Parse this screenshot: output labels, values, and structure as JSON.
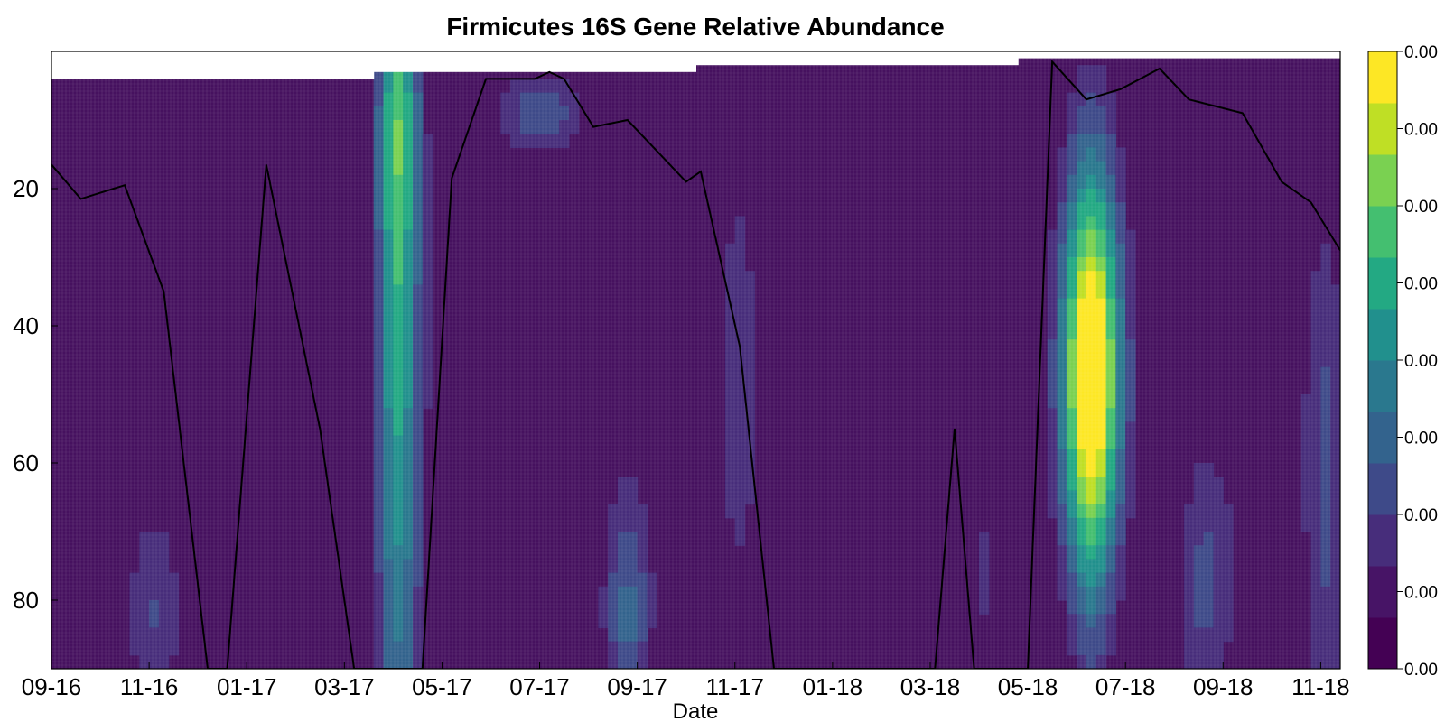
{
  "chart_data": {
    "type": "heatmap",
    "title": "Firmicutes 16S Gene Relative Abundance",
    "xlabel": "Date",
    "ylabel": "",
    "x_ticks": [
      "09-16",
      "11-16",
      "01-17",
      "03-17",
      "05-17",
      "07-17",
      "09-17",
      "11-17",
      "01-18",
      "03-18",
      "05-18",
      "07-18",
      "09-18",
      "11-18"
    ],
    "x_tick_months": [
      0,
      2,
      4,
      6,
      8,
      10,
      12,
      14,
      16,
      18,
      20,
      22,
      24,
      26
    ],
    "xlim_months": [
      0,
      26.4
    ],
    "y_ticks": [
      20,
      40,
      60,
      80
    ],
    "ylim": [
      0,
      90
    ],
    "y_inverted": true,
    "colorbar": {
      "labels": [
        "0.00",
        "0.00",
        "0.00",
        "0.00",
        "0.00",
        "0.00",
        "0.00",
        "0.00",
        "0.00"
      ],
      "palette": [
        "#440154",
        "#471466",
        "#472d7b",
        "#3e4a89",
        "#33638d",
        "#2a788e",
        "#21908d",
        "#23a983",
        "#44bf70",
        "#7ad151",
        "#bfdf25",
        "#fde725"
      ]
    },
    "colors": {
      "background": "#46115f",
      "line": "#000000"
    },
    "blobs": [
      {
        "x": 7.1,
        "y": 35,
        "sx": 0.32,
        "sy": 55,
        "v": 0.62
      },
      {
        "x": 7.1,
        "y": 10,
        "sx": 0.25,
        "sy": 14,
        "v": 0.2
      },
      {
        "x": 21.3,
        "y": 49,
        "sx": 0.45,
        "sy": 17,
        "v": 1.0
      },
      {
        "x": 21.3,
        "y": 26,
        "sx": 0.4,
        "sy": 16,
        "v": 0.35
      },
      {
        "x": 21.3,
        "y": 75,
        "sx": 0.35,
        "sy": 15,
        "v": 0.25
      },
      {
        "x": 10.0,
        "y": 9,
        "sx": 0.55,
        "sy": 4,
        "v": 0.3
      },
      {
        "x": 11.8,
        "y": 82,
        "sx": 0.35,
        "sy": 12,
        "v": 0.32
      },
      {
        "x": 14.1,
        "y": 50,
        "sx": 0.4,
        "sy": 30,
        "v": 0.16
      },
      {
        "x": 2.1,
        "y": 82,
        "sx": 0.45,
        "sy": 12,
        "v": 0.22
      },
      {
        "x": 4.5,
        "y": 30,
        "sx": 0.7,
        "sy": 30,
        "v": 0.12
      },
      {
        "x": 8.5,
        "y": 40,
        "sx": 0.5,
        "sy": 30,
        "v": 0.1
      },
      {
        "x": 23.6,
        "y": 78,
        "sx": 0.4,
        "sy": 14,
        "v": 0.22
      },
      {
        "x": 26.1,
        "y": 62,
        "sx": 0.3,
        "sy": 28,
        "v": 0.24
      },
      {
        "x": 19.0,
        "y": 40,
        "sx": 0.25,
        "sy": 35,
        "v": 0.1
      },
      {
        "x": 19.2,
        "y": 78,
        "sx": 0.2,
        "sy": 10,
        "v": 0.1
      },
      {
        "x": 12.1,
        "y": 30,
        "sx": 1.1,
        "sy": 30,
        "v": 0.08
      },
      {
        "x": 24.7,
        "y": 55,
        "sx": 0.8,
        "sy": 35,
        "v": 0.08
      }
    ],
    "top_profile": [
      {
        "x0": 0,
        "x1": 6.6,
        "ymin": 4
      },
      {
        "x0": 6.6,
        "x1": 13.2,
        "ymin": 3
      },
      {
        "x0": 13.2,
        "x1": 19.8,
        "ymin": 2
      },
      {
        "x0": 19.8,
        "x1": 26.4,
        "ymin": 1
      }
    ],
    "series": [
      {
        "type": "line",
        "x": [
          0,
          0.6,
          1.5,
          2.3,
          3.2,
          3.6,
          4.4,
          5.5,
          6.2,
          7.6,
          8.2,
          8.9,
          9.9,
          10.2,
          10.5,
          11.1,
          11.8,
          13.0,
          13.3,
          14.1,
          14.8,
          18.1,
          18.5,
          18.9,
          20.0,
          20.5,
          21.2,
          21.9,
          22.7,
          23.3,
          24.4,
          25.2,
          25.8,
          26.4
        ],
        "y": [
          16.5,
          21.5,
          19.5,
          35,
          90,
          90,
          16.5,
          55,
          90,
          90,
          18.5,
          4,
          4,
          3,
          4,
          11,
          10,
          19,
          17.5,
          43,
          90,
          90,
          55,
          90,
          90,
          1.5,
          7,
          5.5,
          2.5,
          7,
          9,
          19,
          22,
          29
        ]
      }
    ]
  }
}
